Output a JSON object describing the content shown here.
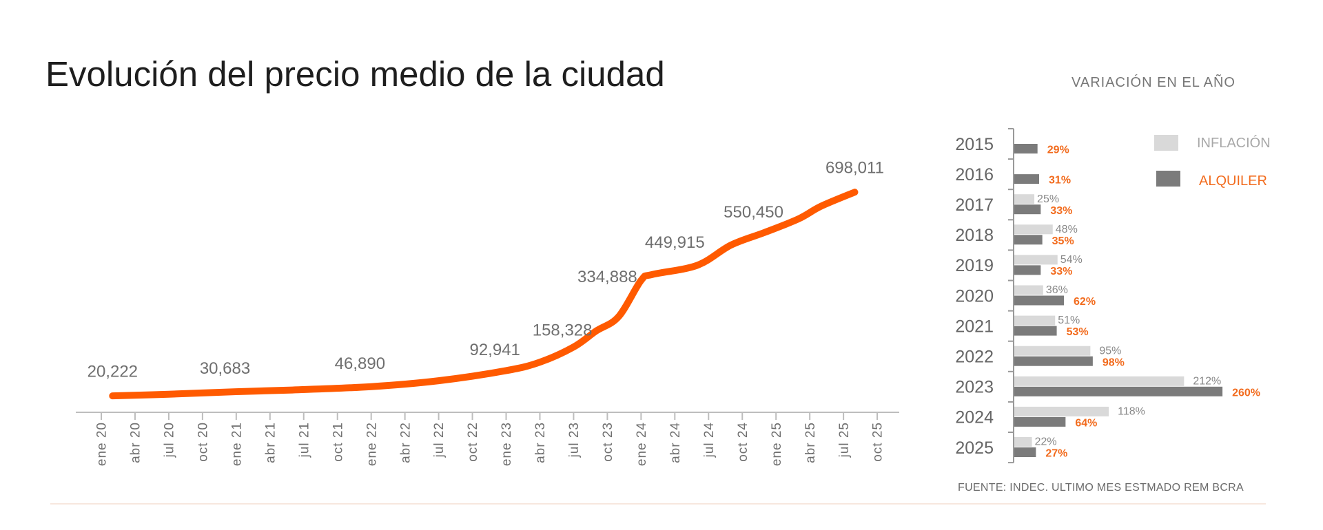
{
  "title": "Evolución del precio medio de la ciudad",
  "side_title": "VARIACIÓN EN EL AÑO",
  "source": "FUENTE: INDEC. ULTIMO MES ESTMADO REM BCRA",
  "colors": {
    "line": "#ff5a00",
    "orange_text": "#f26b1d",
    "inflacion": "#d9d9d9",
    "alquiler": "#7b7b7b",
    "grey_text": "#777777"
  },
  "chart_data": [
    {
      "type": "line",
      "title": "Evolución del precio medio de la ciudad",
      "xlabel": "",
      "ylabel": "",
      "x_ticks": [
        "ene 20",
        "abr 20",
        "jul 20",
        "oct 20",
        "ene 21",
        "abr 21",
        "jul 21",
        "oct 21",
        "ene 22",
        "abr 22",
        "jul 22",
        "oct 22",
        "ene 23",
        "abr 23",
        "jul 23",
        "oct 23",
        "ene 24",
        "abr 24",
        "jul 24",
        "oct 24",
        "ene 25",
        "abr 25",
        "jul 25",
        "oct 25"
      ],
      "grid": false,
      "series": [
        {
          "points": [
            {
              "x": "feb 20",
              "y": 20222
            },
            {
              "x": "jul 20",
              "y": 25800
            },
            {
              "x": "ene 21",
              "y": 34200
            },
            {
              "x": "jun 21",
              "y": 39900
            },
            {
              "x": "ene 22",
              "y": 51000
            },
            {
              "x": "jul 22",
              "y": 70700
            },
            {
              "x": "ene 23",
              "y": 104300
            },
            {
              "x": "abr 23",
              "y": 132400
            },
            {
              "x": "jul 23",
              "y": 182900
            },
            {
              "x": "sep 23",
              "y": 236100
            },
            {
              "x": "nov 23",
              "y": 283800
            },
            {
              "x": "ene 24",
              "y": 404400
            },
            {
              "x": "feb 24",
              "y": 424000
            },
            {
              "x": "jun 24",
              "y": 454800
            },
            {
              "x": "sep 24",
              "y": 522100
            },
            {
              "x": "dic 24",
              "y": 564200
            },
            {
              "x": "mar 25",
              "y": 609100
            },
            {
              "x": "may 25",
              "y": 651100
            },
            {
              "x": "ago 25",
              "y": 698011
            }
          ]
        }
      ],
      "data_labels": [
        {
          "x": "feb 20",
          "value": 20222,
          "text": "20,222"
        },
        {
          "x": "dic 20",
          "value": 30683,
          "text": "30,683"
        },
        {
          "x": "dic 21",
          "value": 46890,
          "text": "46,890"
        },
        {
          "x": "dic 22",
          "value": 92941,
          "text": "92,941"
        },
        {
          "x": "jun 23",
          "value": 158328,
          "text": "158,328"
        },
        {
          "x": "oct 23",
          "value": 334888,
          "text": "334,888"
        },
        {
          "x": "abr 24",
          "value": 449915,
          "text": "449,915"
        },
        {
          "x": "nov 24",
          "value": 550450,
          "text": "550,450"
        },
        {
          "x": "ago 25",
          "value": 698011,
          "text": "698,011"
        }
      ]
    },
    {
      "type": "bar",
      "orientation": "horizontal",
      "title": "VARIACIÓN EN EL AÑO",
      "categories": [
        "2015",
        "2016",
        "2017",
        "2018",
        "2019",
        "2020",
        "2021",
        "2022",
        "2023",
        "2024",
        "2025"
      ],
      "legend_position": "top-right",
      "series": [
        {
          "name": "INFLACIÓN",
          "values": [
            null,
            null,
            25,
            48,
            54,
            36,
            51,
            95,
            212,
            118,
            22
          ],
          "labels": [
            "",
            "",
            "25%",
            "48%",
            "54%",
            "36%",
            "51%",
            "95%",
            "212%",
            "118%",
            "22%"
          ]
        },
        {
          "name": "ALQUILER",
          "values": [
            29,
            31,
            33,
            35,
            33,
            62,
            53,
            98,
            260,
            64,
            27
          ],
          "labels": [
            "29%",
            "31%",
            "33%",
            "35%",
            "33%",
            "62%",
            "53%",
            "98%",
            "260%",
            "64%",
            "27%"
          ]
        }
      ]
    }
  ]
}
